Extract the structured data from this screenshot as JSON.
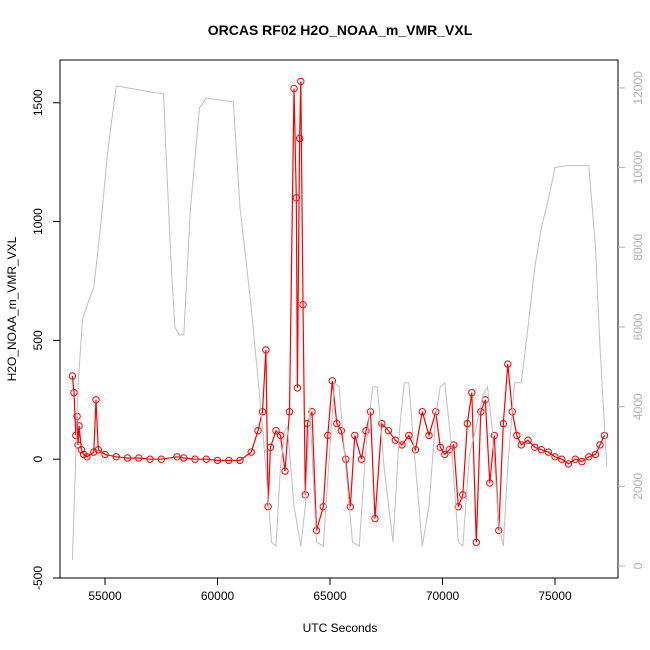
{
  "chart_data": {
    "type": "scatter",
    "title": "ORCAS RF02 H2O_NOAA_m_VMR_VXL",
    "xlabel": "UTC Seconds",
    "ylabel": "H2O_NOAA_m_VMR_VXL",
    "xlim": [
      53000,
      77800
    ],
    "ylim": [
      -500,
      1680
    ],
    "y2lim": [
      -300,
      12700
    ],
    "x_ticks": [
      55000,
      60000,
      65000,
      70000,
      75000
    ],
    "y_ticks": [
      -500,
      0,
      500,
      1000,
      1500
    ],
    "y2_ticks": [
      0,
      2000,
      4000,
      6000,
      8000,
      10000,
      12000
    ],
    "colors": {
      "primary": "#ff0000",
      "secondary": "#c0c0c0"
    },
    "series": [
      {
        "axis": "left",
        "style": "points-with-lines",
        "color": "#ff0000",
        "points": [
          [
            53550,
            350
          ],
          [
            53620,
            280
          ],
          [
            53700,
            100
          ],
          [
            53760,
            180
          ],
          [
            53800,
            60
          ],
          [
            53850,
            140
          ],
          [
            53950,
            40
          ],
          [
            54050,
            20
          ],
          [
            54200,
            10
          ],
          [
            54500,
            30
          ],
          [
            54600,
            250
          ],
          [
            54700,
            40
          ],
          [
            55000,
            20
          ],
          [
            55500,
            10
          ],
          [
            56000,
            5
          ],
          [
            56500,
            5
          ],
          [
            57000,
            0
          ],
          [
            57500,
            0
          ],
          [
            58200,
            10
          ],
          [
            58500,
            5
          ],
          [
            59000,
            0
          ],
          [
            59500,
            0
          ],
          [
            60000,
            -5
          ],
          [
            60500,
            -5
          ],
          [
            61000,
            -5
          ],
          [
            61500,
            30
          ],
          [
            61800,
            120
          ],
          [
            62000,
            200
          ],
          [
            62150,
            460
          ],
          [
            62250,
            -200
          ],
          [
            62350,
            50
          ],
          [
            62600,
            120
          ],
          [
            62800,
            100
          ],
          [
            63000,
            -50
          ],
          [
            63200,
            200
          ],
          [
            63400,
            1560
          ],
          [
            63500,
            1100
          ],
          [
            63550,
            300
          ],
          [
            63650,
            1350
          ],
          [
            63700,
            1590
          ],
          [
            63800,
            650
          ],
          [
            63900,
            -150
          ],
          [
            64000,
            150
          ],
          [
            64200,
            200
          ],
          [
            64400,
            -300
          ],
          [
            64700,
            -200
          ],
          [
            64900,
            100
          ],
          [
            65100,
            330
          ],
          [
            65300,
            150
          ],
          [
            65500,
            120
          ],
          [
            65700,
            0
          ],
          [
            65900,
            -200
          ],
          [
            66100,
            100
          ],
          [
            66400,
            0
          ],
          [
            66600,
            120
          ],
          [
            66800,
            200
          ],
          [
            67000,
            -250
          ],
          [
            67300,
            150
          ],
          [
            67600,
            120
          ],
          [
            67900,
            80
          ],
          [
            68200,
            60
          ],
          [
            68500,
            100
          ],
          [
            68800,
            40
          ],
          [
            69100,
            200
          ],
          [
            69400,
            100
          ],
          [
            69700,
            200
          ],
          [
            69900,
            50
          ],
          [
            70100,
            20
          ],
          [
            70300,
            40
          ],
          [
            70500,
            60
          ],
          [
            70700,
            -200
          ],
          [
            70900,
            -150
          ],
          [
            71100,
            150
          ],
          [
            71300,
            280
          ],
          [
            71500,
            -350
          ],
          [
            71700,
            200
          ],
          [
            71900,
            250
          ],
          [
            72100,
            -100
          ],
          [
            72300,
            100
          ],
          [
            72500,
            -300
          ],
          [
            72700,
            150
          ],
          [
            72900,
            400
          ],
          [
            73100,
            200
          ],
          [
            73300,
            100
          ],
          [
            73500,
            60
          ],
          [
            73800,
            80
          ],
          [
            74100,
            50
          ],
          [
            74400,
            40
          ],
          [
            74700,
            30
          ],
          [
            75000,
            10
          ],
          [
            75300,
            0
          ],
          [
            75600,
            -20
          ],
          [
            75900,
            0
          ],
          [
            76200,
            -10
          ],
          [
            76500,
            10
          ],
          [
            76800,
            20
          ],
          [
            77000,
            60
          ],
          [
            77200,
            100
          ]
        ]
      },
      {
        "axis": "right",
        "style": "line",
        "color": "#c0c0c0",
        "points": [
          [
            53550,
            150
          ],
          [
            53800,
            4500
          ],
          [
            54000,
            6200
          ],
          [
            54300,
            6700
          ],
          [
            54500,
            7000
          ],
          [
            54800,
            8500
          ],
          [
            55100,
            10300
          ],
          [
            55300,
            11200
          ],
          [
            55500,
            12050
          ],
          [
            56000,
            12000
          ],
          [
            57000,
            11900
          ],
          [
            57600,
            11850
          ],
          [
            57900,
            8000
          ],
          [
            58100,
            6000
          ],
          [
            58300,
            5800
          ],
          [
            58500,
            5800
          ],
          [
            58800,
            9000
          ],
          [
            59200,
            11500
          ],
          [
            59500,
            11750
          ],
          [
            60000,
            11700
          ],
          [
            60700,
            11650
          ],
          [
            61000,
            9000
          ],
          [
            61500,
            6500
          ],
          [
            62000,
            3500
          ],
          [
            62400,
            600
          ],
          [
            62600,
            500
          ],
          [
            62800,
            2500
          ],
          [
            63000,
            3400
          ],
          [
            63100,
            3500
          ],
          [
            63400,
            1500
          ],
          [
            63700,
            500
          ],
          [
            63900,
            1500
          ],
          [
            64100,
            4000
          ],
          [
            64400,
            600
          ],
          [
            64700,
            500
          ],
          [
            65000,
            3000
          ],
          [
            65200,
            4600
          ],
          [
            65400,
            4500
          ],
          [
            65700,
            2500
          ],
          [
            66000,
            600
          ],
          [
            66300,
            500
          ],
          [
            66600,
            3000
          ],
          [
            66900,
            4500
          ],
          [
            67100,
            4500
          ],
          [
            67400,
            2500
          ],
          [
            67800,
            600
          ],
          [
            68100,
            3500
          ],
          [
            68300,
            4600
          ],
          [
            68500,
            4600
          ],
          [
            68800,
            2500
          ],
          [
            69100,
            500
          ],
          [
            69400,
            1500
          ],
          [
            69700,
            3800
          ],
          [
            69900,
            4500
          ],
          [
            70100,
            4600
          ],
          [
            70400,
            3000
          ],
          [
            70700,
            600
          ],
          [
            70900,
            500
          ],
          [
            71200,
            2800
          ],
          [
            71500,
            3500
          ],
          [
            71800,
            4300
          ],
          [
            72000,
            4500
          ],
          [
            72200,
            3500
          ],
          [
            72500,
            1000
          ],
          [
            72700,
            500
          ],
          [
            72900,
            2500
          ],
          [
            73200,
            4600
          ],
          [
            73500,
            4600
          ],
          [
            73800,
            6000
          ],
          [
            74100,
            7500
          ],
          [
            74400,
            8500
          ],
          [
            74700,
            9200
          ],
          [
            75000,
            10000
          ],
          [
            75500,
            10050
          ],
          [
            76000,
            10050
          ],
          [
            76500,
            10050
          ],
          [
            76800,
            8000
          ],
          [
            77000,
            5500
          ],
          [
            77200,
            3500
          ],
          [
            77300,
            2500
          ]
        ]
      }
    ]
  }
}
